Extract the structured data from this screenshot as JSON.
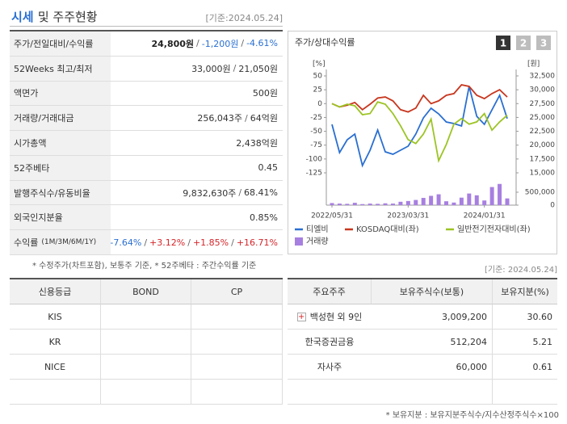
{
  "header": {
    "title_highlight": "시세",
    "title_rest": "및 주주현황",
    "date": "[기준:2024.05.24]"
  },
  "summary": {
    "separator": "/",
    "rows": [
      {
        "label": "주가/전일대비/수익률",
        "values": [
          {
            "text": "24,800원",
            "tone": "bold"
          },
          {
            "text": "-1,200원",
            "tone": "down"
          },
          {
            "text": "-4.61%",
            "tone": "down"
          }
        ]
      },
      {
        "label": "52Weeks 최고/최저",
        "values": [
          {
            "text": "33,000원",
            "tone": "plain"
          },
          {
            "text": "21,050원",
            "tone": "plain"
          }
        ]
      },
      {
        "label": "액면가",
        "values": [
          {
            "text": "500원",
            "tone": "plain"
          }
        ]
      },
      {
        "label": "거래량/거래대금",
        "values": [
          {
            "text": "256,043주",
            "tone": "plain"
          },
          {
            "text": "64억원",
            "tone": "plain"
          }
        ]
      },
      {
        "label": "시가총액",
        "values": [
          {
            "text": "2,438억원",
            "tone": "plain"
          }
        ]
      },
      {
        "label": "52주베타",
        "values": [
          {
            "text": "0.45",
            "tone": "plain"
          }
        ]
      },
      {
        "label": "발행주식수/유동비율",
        "values": [
          {
            "text": "9,832,630주",
            "tone": "plain"
          },
          {
            "text": "68.41%",
            "tone": "plain"
          }
        ]
      },
      {
        "label": "외국인지분율",
        "values": [
          {
            "text": "0.85%",
            "tone": "plain"
          }
        ]
      },
      {
        "label": "수익률",
        "sub_label": "(1M/3M/6M/1Y)",
        "values": [
          {
            "text": "-7.64%",
            "tone": "down"
          },
          {
            "text": "+3.12%",
            "tone": "up"
          },
          {
            "text": "+1.85%",
            "tone": "up"
          },
          {
            "text": "+16.71%",
            "tone": "up"
          }
        ]
      }
    ],
    "note": "* 수정주가(차트포함), 보통주 기준, * 52주베타 : 주간수익률 기준"
  },
  "chart_data": {
    "type": "line",
    "title": "주가/상대수익률",
    "buttons": [
      "1",
      "2",
      "3"
    ],
    "ylabel": "[%]",
    "y2label": "[원]",
    "xlim": [
      0,
      23
    ],
    "xticks": [
      {
        "value": 0,
        "label": "2022/05/31"
      },
      {
        "value": 10,
        "label": "2023/03/31"
      },
      {
        "value": 20,
        "label": "2024/01/31"
      }
    ],
    "ylim": [
      -125,
      50
    ],
    "yticks": [
      50,
      25,
      0,
      -25,
      -50,
      -75,
      -100,
      -125
    ],
    "y2lim": [
      15000,
      32500
    ],
    "y2ticks": [
      {
        "value": 32500,
        "label": "32,500"
      },
      {
        "value": 30000,
        "label": "30,000"
      },
      {
        "value": 27500,
        "label": "27,500"
      },
      {
        "value": 25000,
        "label": "25,000"
      },
      {
        "value": 22500,
        "label": "22,500"
      },
      {
        "value": 20000,
        "label": "20,000"
      },
      {
        "value": 17500,
        "label": "17,500"
      },
      {
        "value": 15000,
        "label": "15,000"
      }
    ],
    "series": [
      {
        "name": "티엘비",
        "color": "#2a6fd1",
        "axis": "y2",
        "values": [
          23750,
          18650,
          20980,
          22000,
          16310,
          19080,
          22730,
          18790,
          18350,
          19080,
          19810,
          22000,
          24920,
          26670,
          25650,
          24190,
          23900,
          23460,
          30600,
          25210,
          23750,
          26380,
          29000,
          24800
        ]
      },
      {
        "name": "KOSDAQ대비(좌)",
        "color": "#c8361e",
        "values": [
          0,
          -6,
          -3,
          2,
          -11,
          -1,
          10,
          12,
          5,
          -11,
          -15,
          -8,
          15,
          0,
          5,
          15,
          18,
          34,
          31,
          15,
          9,
          18,
          25,
          12
        ]
      },
      {
        "name": "일반전기전자대비(좌)",
        "color": "#9cc424",
        "values": [
          0,
          -6,
          -1,
          -4,
          -20,
          -18,
          3,
          -1,
          -18,
          -40,
          -65,
          -72,
          -55,
          -28,
          -103,
          -74,
          -37,
          -27,
          -37,
          -33,
          -18,
          -48,
          -33,
          -21
        ]
      }
    ],
    "volume": {
      "name": "거래량",
      "color": "#a77fe0",
      "y3lim": [
        0,
        500000
      ],
      "y3ticks": [
        {
          "value": 500000,
          "label": "500,000"
        },
        0
      ],
      "values": [
        80000,
        60000,
        50000,
        90000,
        40000,
        60000,
        50000,
        70000,
        60000,
        130000,
        160000,
        200000,
        280000,
        360000,
        420000,
        150000,
        100000,
        290000,
        450000,
        380000,
        180000,
        700000,
        820000,
        260000
      ]
    }
  },
  "credit": {
    "headers": [
      "신용등급",
      "BOND",
      "CP"
    ],
    "rows": [
      [
        "KIS"
      ],
      [
        "KR"
      ],
      [
        "NICE"
      ]
    ]
  },
  "shareholders": {
    "date": "[기준: 2024.05.24]",
    "headers": [
      "주요주주",
      "보유주식수(보통)",
      "보유지분(%)"
    ],
    "rows": [
      [
        "백성현 외 9인",
        "3,009,200",
        "30.60"
      ],
      [
        "한국증권금융",
        "512,204",
        "5.21"
      ],
      [
        "자사주",
        "60,000",
        "0.61"
      ]
    ],
    "note": "* 보유지분 : 보유지분주식수/지수산정주식수×100"
  }
}
